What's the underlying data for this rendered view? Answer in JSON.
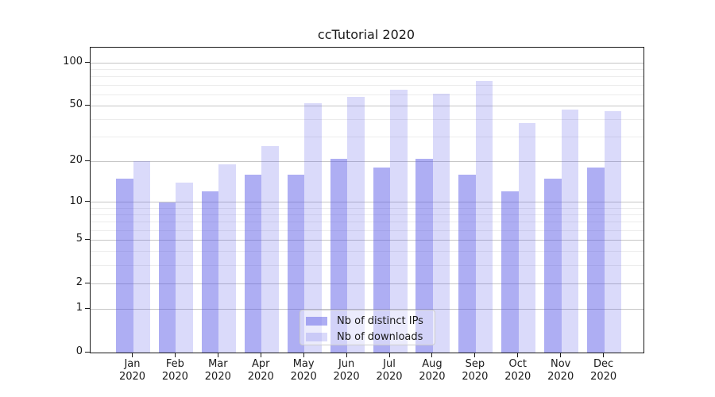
{
  "title": "ccTutorial 2020",
  "legend": {
    "items": [
      {
        "label": "Nb of distinct IPs"
      },
      {
        "label": "Nb of downloads"
      }
    ]
  },
  "axes": {
    "y_scale": "log1p",
    "y_max": 128,
    "y_major_ticks": [
      0,
      1,
      2,
      5,
      10,
      20,
      50,
      100
    ],
    "y_minor_ticks": [
      3,
      4,
      6,
      7,
      8,
      9,
      30,
      40,
      60,
      70,
      80,
      90
    ],
    "x_year": "2020"
  },
  "colors": {
    "bar_dark": "rgba(82,82,230,0.47)",
    "bar_light": "rgba(82,82,230,0.21)",
    "grid_major": "#c6c6c6",
    "grid_minor": "#ececec",
    "axis": "#1a1a1a",
    "text": "#1a1a1a",
    "legend_bg": "rgba(255,255,255,0.45)",
    "legend_border": "#cccccc"
  },
  "chart_data": {
    "type": "bar",
    "title": "ccTutorial 2020",
    "categories": [
      "Jan",
      "Feb",
      "Mar",
      "Apr",
      "May",
      "Jun",
      "Jul",
      "Aug",
      "Sep",
      "Oct",
      "Nov",
      "Dec"
    ],
    "x_year": "2020",
    "series": [
      {
        "name": "Nb of distinct IPs",
        "values": [
          15,
          10,
          12,
          16,
          16,
          21,
          18,
          21,
          16,
          12,
          15,
          18
        ]
      },
      {
        "name": "Nb of downloads",
        "values": [
          20,
          14,
          19,
          26,
          52,
          58,
          65,
          61,
          75,
          38,
          47,
          46
        ]
      }
    ],
    "xlabel": "",
    "ylabel": "",
    "yticks": [
      0,
      1,
      2,
      5,
      10,
      20,
      50,
      100
    ],
    "y_scale": "log(1+x)",
    "ylim": [
      0,
      128
    ],
    "grid": true,
    "legend_position": "lower-center-inside"
  }
}
